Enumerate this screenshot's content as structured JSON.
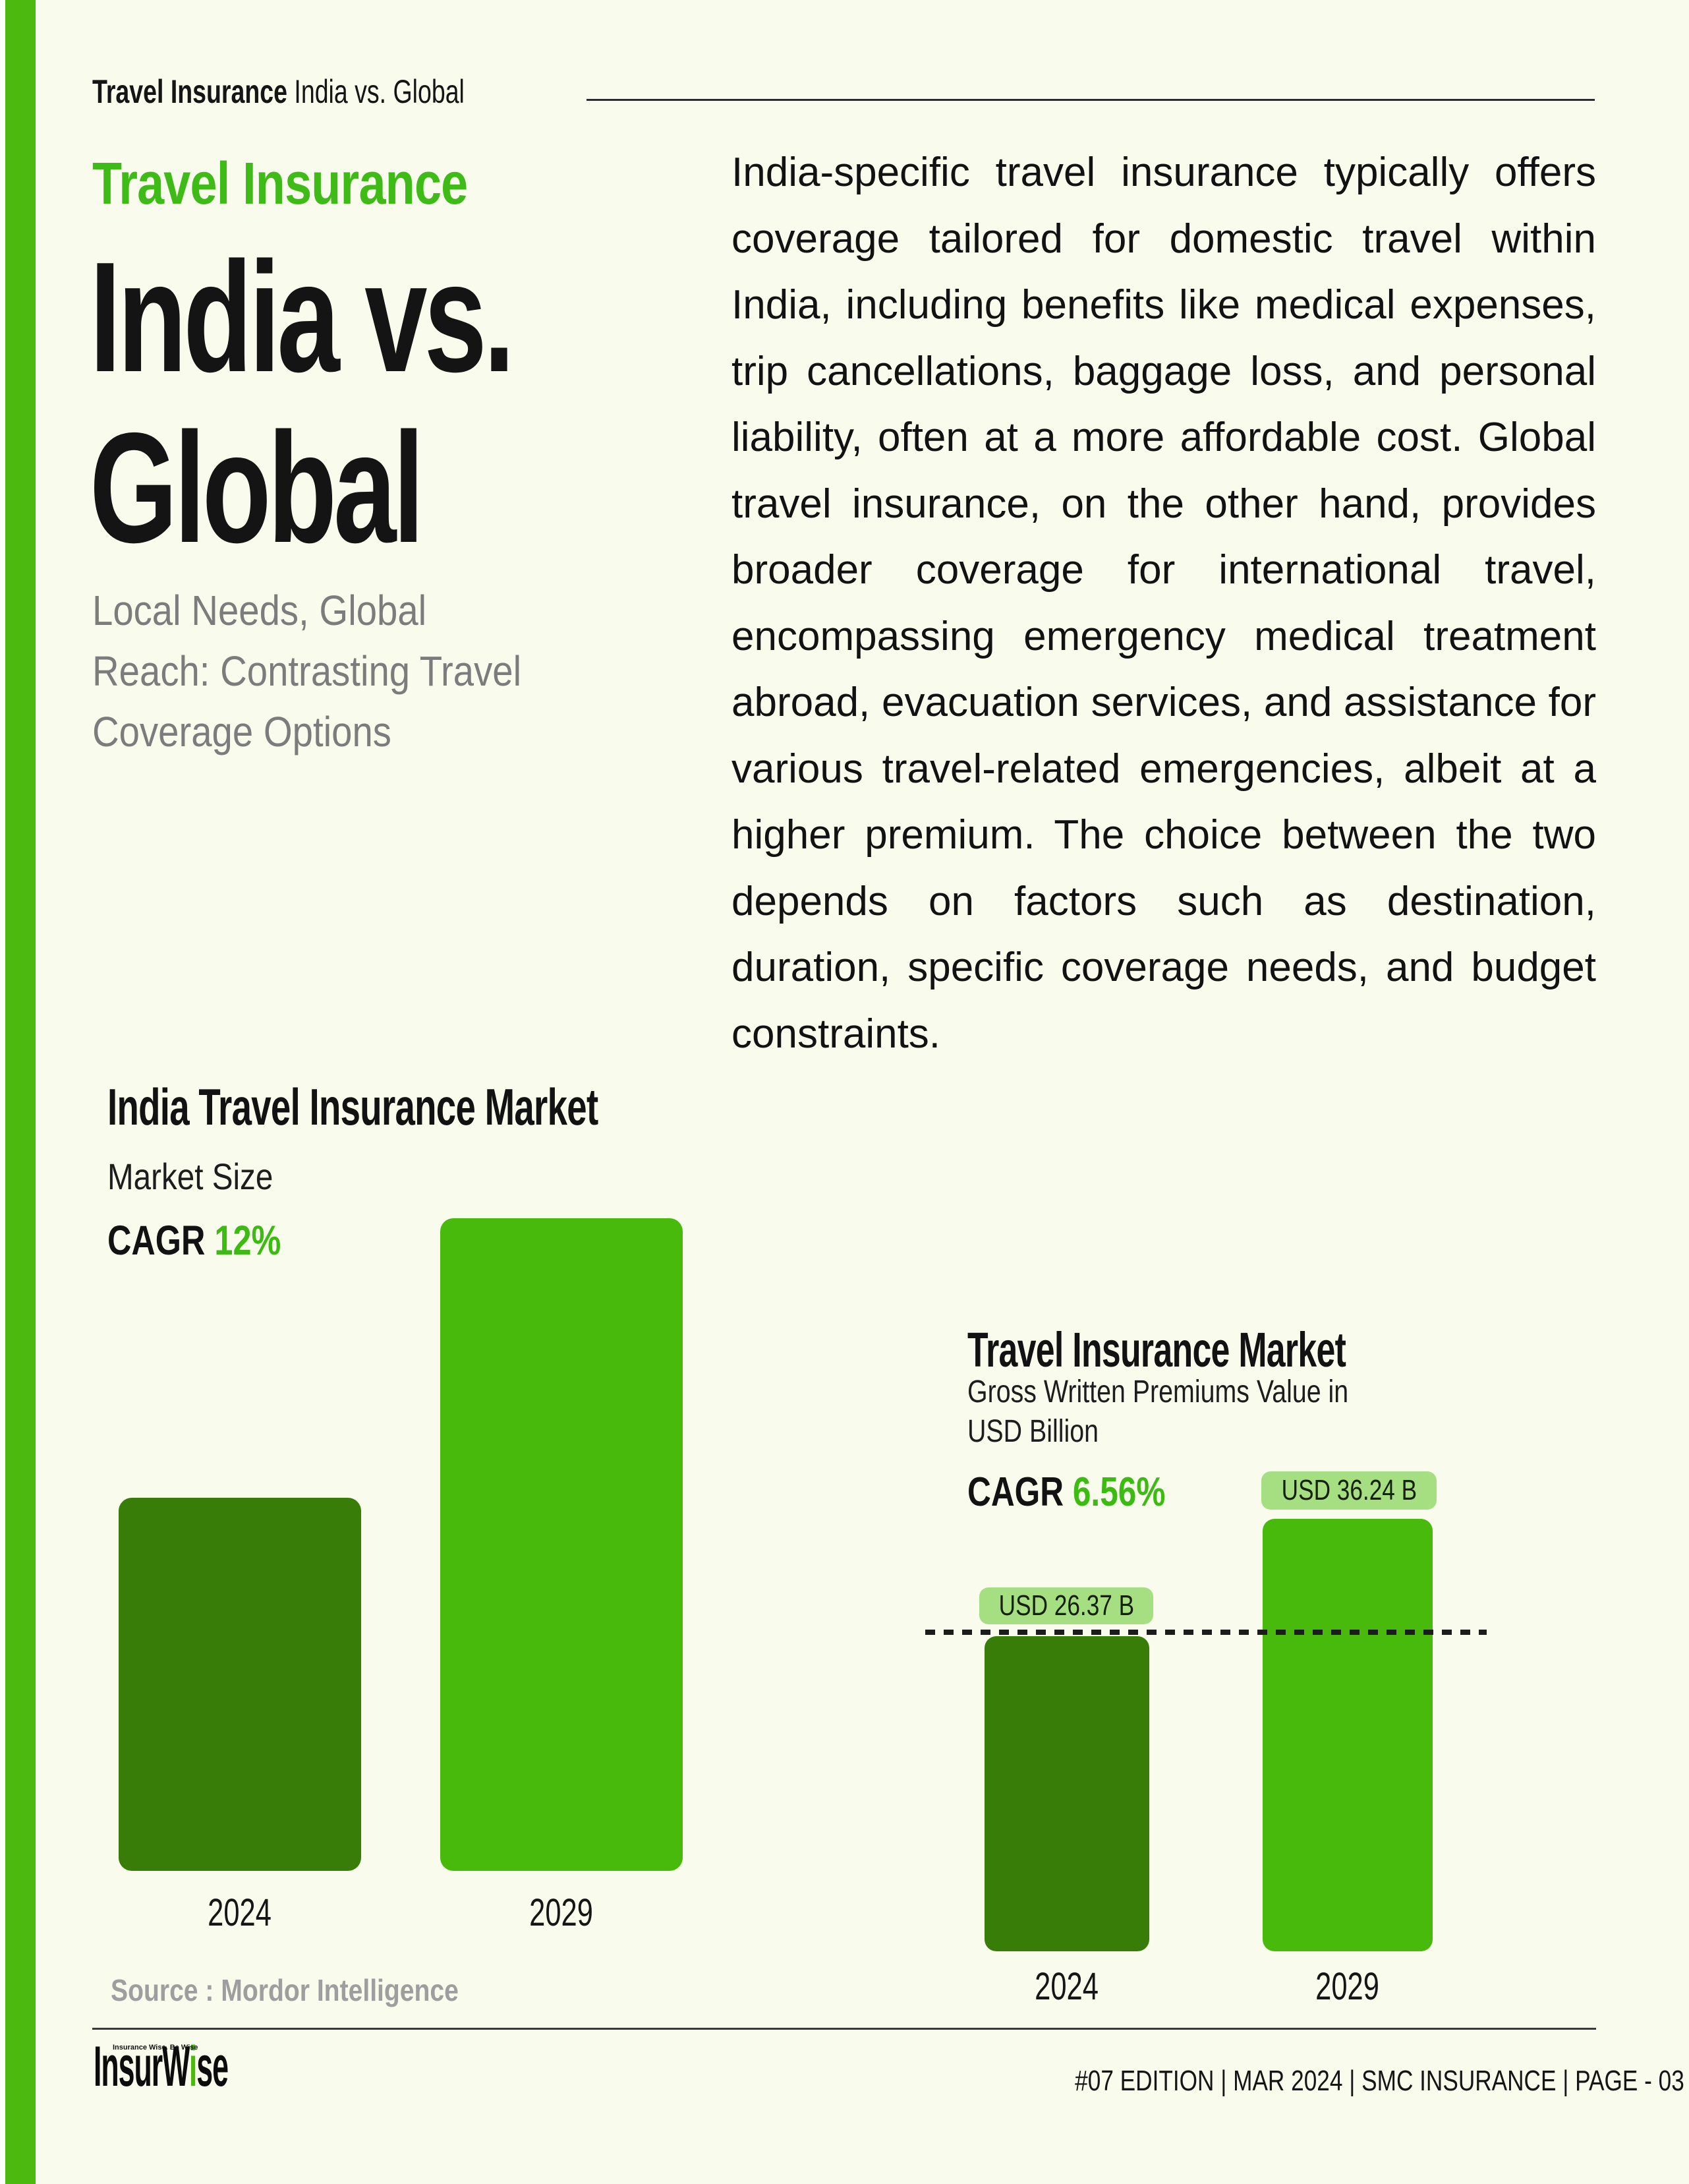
{
  "page": {
    "background": "#f9fbec",
    "header": {
      "brand_bold": "Travel Insurance",
      "brand_rest": "India vs. Global"
    },
    "hero": {
      "eyebrow": "Travel Insurance",
      "title_lines": [
        "India vs.",
        "Global"
      ],
      "subtitle_lines": [
        "Local Needs, Global",
        "Reach: Contrasting Travel",
        "Coverage Options"
      ]
    },
    "body_paragraph": "India-specific travel insurance typically offers coverage tailored for domestic travel within India, including benefits like medical expenses, trip cancellations, baggage loss, and personal liability, often at a more affordable cost. Global travel insurance, on the other hand, provides broader coverage for international travel, encompassing emergency medical treatment abroad, evacuation services, and assistance for various travel-related emergencies, albeit at a higher premium. The choice between the two depends on factors such as destination, duration, specific coverage needs, and budget constraints.",
    "footer": {
      "logo": {
        "part_insur": "Insur",
        "part_w": "W",
        "part_i_green": "i",
        "part_se": "se",
        "tagline": "Insurance Wise. Be Wise"
      },
      "meta": "#07 EDITION | MAR 2024 |  SMC INSURANCE | PAGE - 03"
    }
  },
  "colors": {
    "accent_green": "#4cb90e",
    "heading_green": "#3ebb17",
    "cagr_green": "#3cbb12",
    "bar_bright_green": "#47ba0b",
    "bar_dark_green": "#387d08",
    "badge_light_green": "#a6df82",
    "subtitle_gray": "#7c7c7c",
    "source_gray": "#9e9e9e",
    "background_cream": "#f9fbec",
    "text_black": "#141414"
  },
  "chart_data": [
    {
      "type": "bar",
      "title": "India Travel Insurance Market",
      "subtitle": "Market Size",
      "cagr_label": "CAGR",
      "cagr_value": "12%",
      "categories": [
        "2024",
        "2029"
      ],
      "values_labeled": false,
      "relative_values": [
        0.57,
        1.0
      ],
      "grid": false,
      "legend": false,
      "source": "Source : Mordor Intelligence"
    },
    {
      "type": "bar",
      "title": "Travel Insurance Market",
      "subtitle_lines": [
        "Gross Written Premiums Value in",
        "USD Billion"
      ],
      "unit": "USD Billion",
      "cagr_label": "CAGR",
      "cagr_value": "6.56%",
      "categories": [
        "2024",
        "2029"
      ],
      "values": [
        26.37,
        36.24
      ],
      "value_labels": [
        "USD 26.37 B",
        "USD 36.24 B"
      ],
      "reference_line": {
        "style": "dashed",
        "at_value": 26.37
      },
      "grid": false,
      "legend": false
    }
  ]
}
